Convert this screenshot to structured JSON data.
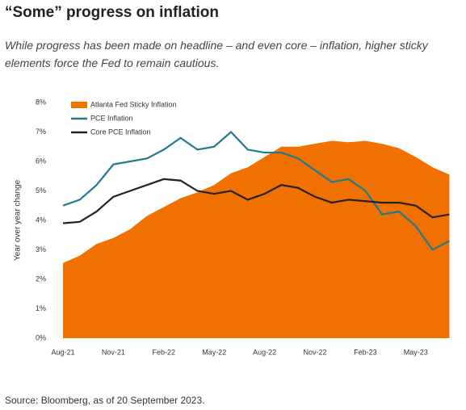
{
  "chart_data": {
    "type": "area_line",
    "title": "“Some” progress on inflation",
    "subtitle": "While progress has been made on headline – and even core – inflation, higher sticky elements force the Fed to remain cautious.",
    "source": "Source: Bloomberg, as of 20 September 2023.",
    "ylabel": "Year over year change",
    "categories": [
      "Aug-21",
      null,
      null,
      "Nov-21",
      null,
      null,
      "Feb-22",
      null,
      null,
      "May-22",
      null,
      null,
      "Aug-22",
      null,
      null,
      "Nov-22",
      null,
      null,
      "Feb-23",
      null,
      null,
      "May-23",
      null,
      null
    ],
    "ylim": [
      0,
      8
    ],
    "yticks": [
      {
        "value": 0,
        "label": "0%"
      },
      {
        "value": 1,
        "label": "1%"
      },
      {
        "value": 2,
        "label": "2%"
      },
      {
        "value": 3,
        "label": "3%"
      },
      {
        "value": 4,
        "label": "4%"
      },
      {
        "value": 5,
        "label": "5%"
      },
      {
        "value": 6,
        "label": "6%"
      },
      {
        "value": 7,
        "label": "7%"
      },
      {
        "value": 8,
        "label": "8%"
      }
    ],
    "legend": "top-left",
    "series": [
      {
        "name": "Atlanta Fed Sticky Inflation",
        "color": "#f07000",
        "kind": "area",
        "values": [
          2.55,
          2.8,
          3.2,
          3.4,
          3.7,
          4.15,
          4.45,
          4.75,
          4.95,
          5.2,
          5.6,
          5.8,
          6.15,
          6.5,
          6.5,
          6.6,
          6.7,
          6.65,
          6.7,
          6.6,
          6.45,
          6.15,
          5.8,
          5.55
        ]
      },
      {
        "name": "PCE Inflation",
        "color": "#1f7a8c",
        "kind": "line",
        "values": [
          4.5,
          4.7,
          5.2,
          5.9,
          6.0,
          6.1,
          6.4,
          6.8,
          6.4,
          6.5,
          7.0,
          6.4,
          6.3,
          6.3,
          6.1,
          5.7,
          5.3,
          5.4,
          5.0,
          4.2,
          4.3,
          3.8,
          3.0,
          3.3
        ]
      },
      {
        "name": "Core PCE Inflation",
        "color": "#222222",
        "kind": "line",
        "values": [
          3.9,
          3.95,
          4.3,
          4.8,
          5.0,
          5.2,
          5.4,
          5.35,
          5.0,
          4.9,
          5.0,
          4.7,
          4.9,
          5.2,
          5.1,
          4.8,
          4.6,
          4.7,
          4.65,
          4.6,
          4.6,
          4.5,
          4.1,
          4.2
        ]
      }
    ]
  }
}
